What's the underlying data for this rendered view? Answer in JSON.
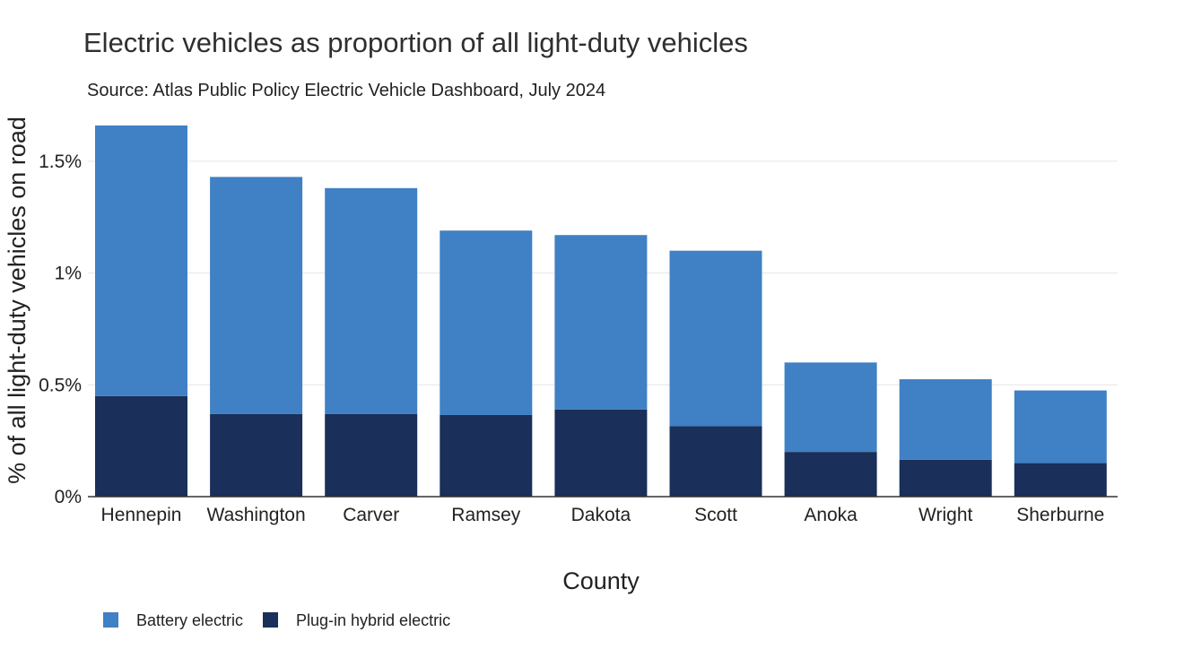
{
  "chart_data": {
    "type": "bar",
    "stacked": true,
    "title": "Electric vehicles as proportion of all light-duty vehicles",
    "subtitle": "Source: Atlas Public Policy Electric Vehicle Dashboard, July 2024",
    "xlabel": "County",
    "ylabel": "% of all light-duty vehicles on road",
    "ylim": [
      0,
      1.66
    ],
    "yticks": [
      {
        "value": 0,
        "label": "0%"
      },
      {
        "value": 0.5,
        "label": "0.5%"
      },
      {
        "value": 1,
        "label": "1%"
      },
      {
        "value": 1.5,
        "label": "1.5%"
      }
    ],
    "grid": true,
    "legend_position": "bottom-left",
    "categories": [
      "Hennepin",
      "Washington",
      "Carver",
      "Ramsey",
      "Dakota",
      "Scott",
      "Anoka",
      "Wright",
      "Sherburne"
    ],
    "series": [
      {
        "name": "Plug-in hybrid electric",
        "color": "#1a2f5a",
        "values": [
          0.45,
          0.37,
          0.37,
          0.365,
          0.39,
          0.315,
          0.2,
          0.165,
          0.15
        ]
      },
      {
        "name": "Battery electric",
        "color": "#4080c4",
        "values": [
          1.21,
          1.06,
          1.01,
          0.825,
          0.78,
          0.785,
          0.4,
          0.36,
          0.325
        ]
      }
    ],
    "legend_order": [
      "Battery electric",
      "Plug-in hybrid electric"
    ]
  }
}
